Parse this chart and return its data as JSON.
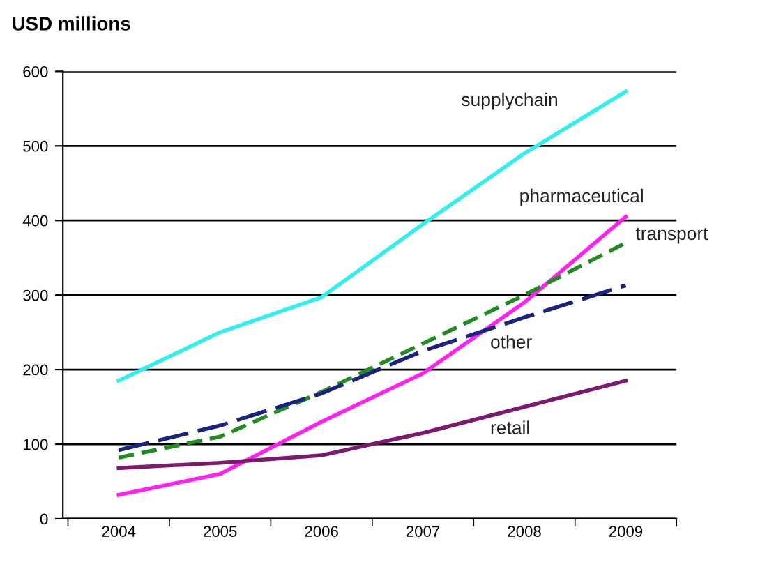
{
  "chart_data": {
    "type": "line",
    "ylabel": "USD millions",
    "categories": [
      "2004",
      "2005",
      "2006",
      "2007",
      "2008",
      "2009"
    ],
    "ylim": [
      0,
      600
    ],
    "yticks": [
      0,
      100,
      200,
      300,
      400,
      500,
      600
    ],
    "grid": "y",
    "legend": false,
    "marker": "none",
    "series": [
      {
        "name": "supplychain",
        "color": "#33eeee",
        "line_style": "solid",
        "values": [
          185,
          250,
          297,
          395,
          490,
          573
        ]
      },
      {
        "name": "pharmaceutical",
        "color": "#ff22ee",
        "line_style": "solid",
        "values": [
          32,
          60,
          130,
          195,
          290,
          405
        ]
      },
      {
        "name": "transport",
        "color": "#228b22",
        "line_style": "dashed",
        "values": [
          82,
          110,
          170,
          235,
          300,
          370
        ]
      },
      {
        "name": "other",
        "color": "#1a237e",
        "line_style": "dashed",
        "values": [
          92,
          125,
          168,
          225,
          270,
          313
        ]
      },
      {
        "name": "retail",
        "color": "#7b1a6e",
        "line_style": "solid",
        "values": [
          68,
          75,
          85,
          115,
          150,
          185
        ]
      }
    ]
  }
}
